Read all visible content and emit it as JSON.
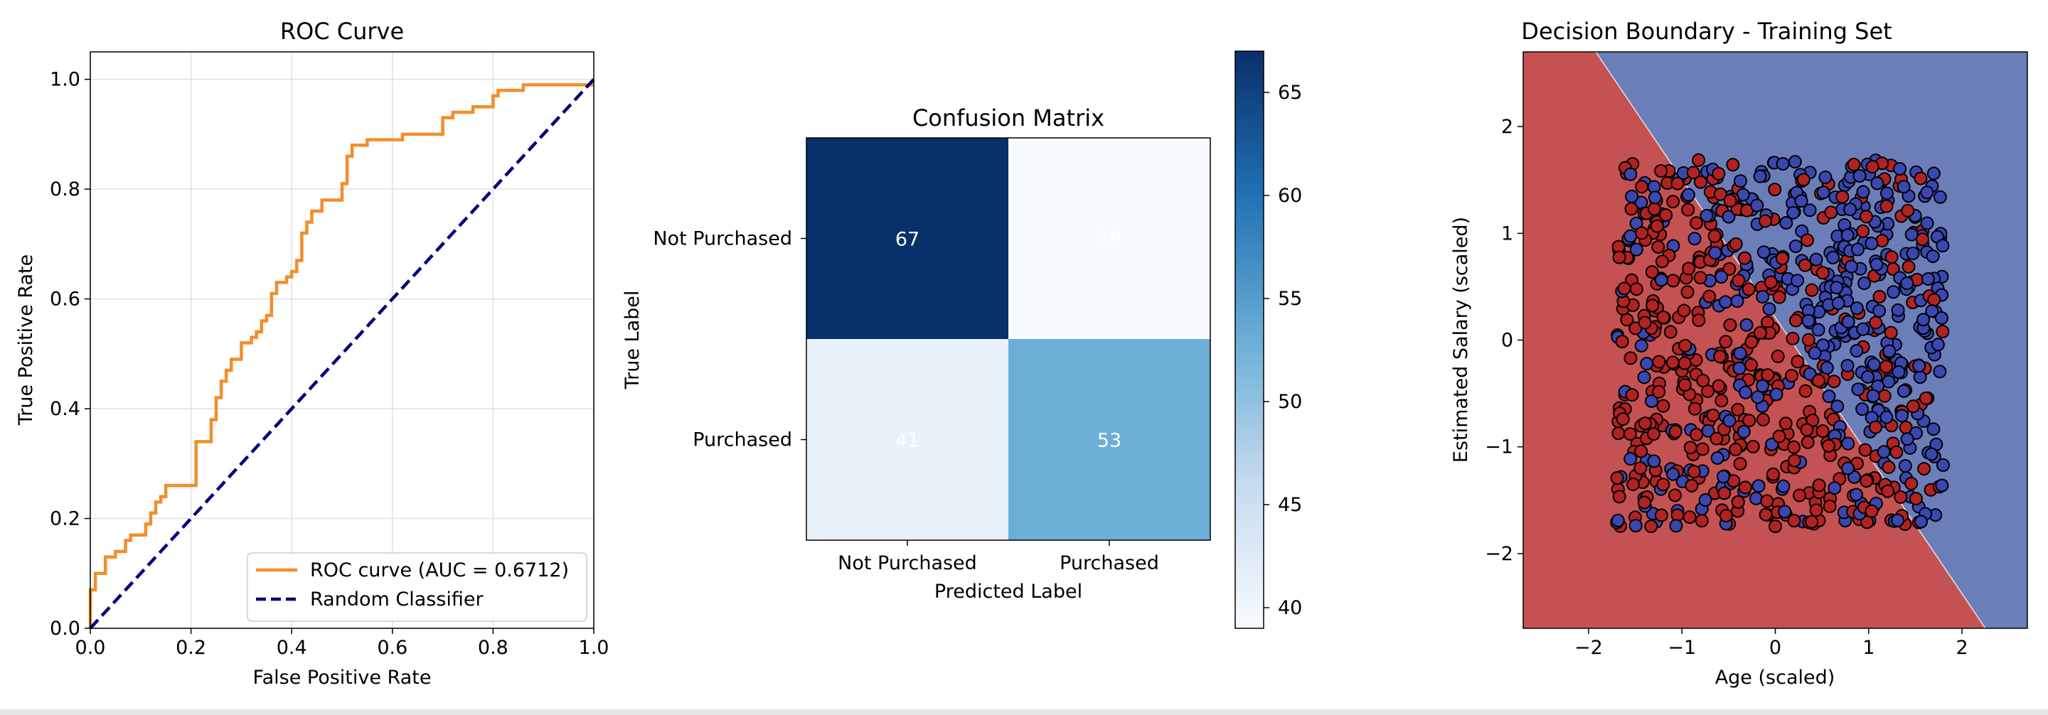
{
  "chart_data": [
    {
      "type": "line",
      "title": "ROC Curve",
      "xlabel": "False Positive Rate",
      "ylabel": "True Positive Rate",
      "xlim": [
        0,
        1
      ],
      "ylim": [
        0,
        1.05
      ],
      "xticks": [
        "0.0",
        "0.2",
        "0.4",
        "0.6",
        "0.8",
        "1.0"
      ],
      "yticks": [
        "0.0",
        "0.2",
        "0.4",
        "0.6",
        "0.8",
        "1.0"
      ],
      "grid": true,
      "legend_position": "lower-right",
      "series": [
        {
          "name": "ROC curve (AUC = 0.6712)",
          "color": "#f28e2b",
          "x": [
            0.0,
            0.0,
            0.01,
            0.01,
            0.03,
            0.03,
            0.05,
            0.05,
            0.07,
            0.07,
            0.08,
            0.08,
            0.11,
            0.11,
            0.12,
            0.12,
            0.13,
            0.13,
            0.14,
            0.14,
            0.15,
            0.15,
            0.16,
            0.16,
            0.17,
            0.17,
            0.21,
            0.21,
            0.24,
            0.24,
            0.25,
            0.25,
            0.26,
            0.26,
            0.27,
            0.27,
            0.28,
            0.28,
            0.3,
            0.3,
            0.32,
            0.32,
            0.33,
            0.33,
            0.34,
            0.34,
            0.35,
            0.35,
            0.36,
            0.36,
            0.37,
            0.37,
            0.39,
            0.39,
            0.4,
            0.4,
            0.41,
            0.41,
            0.42,
            0.42,
            0.43,
            0.43,
            0.44,
            0.44,
            0.46,
            0.46,
            0.47,
            0.47,
            0.5,
            0.5,
            0.51,
            0.51,
            0.52,
            0.52,
            0.55,
            0.55,
            0.57,
            0.57,
            0.62,
            0.62,
            0.7,
            0.7,
            0.72,
            0.72,
            0.76,
            0.76,
            0.8,
            0.8,
            0.81,
            0.81,
            0.84,
            0.84,
            0.86,
            0.86,
            1.0
          ],
          "y": [
            0.0,
            0.07,
            0.07,
            0.1,
            0.1,
            0.13,
            0.13,
            0.14,
            0.14,
            0.16,
            0.16,
            0.17,
            0.17,
            0.19,
            0.19,
            0.21,
            0.21,
            0.23,
            0.23,
            0.24,
            0.24,
            0.26,
            0.26,
            0.26,
            0.26,
            0.26,
            0.26,
            0.34,
            0.34,
            0.38,
            0.38,
            0.42,
            0.42,
            0.45,
            0.45,
            0.47,
            0.47,
            0.49,
            0.49,
            0.52,
            0.52,
            0.53,
            0.53,
            0.54,
            0.54,
            0.56,
            0.56,
            0.57,
            0.57,
            0.61,
            0.61,
            0.63,
            0.63,
            0.64,
            0.64,
            0.65,
            0.65,
            0.67,
            0.67,
            0.72,
            0.72,
            0.74,
            0.74,
            0.76,
            0.76,
            0.78,
            0.78,
            0.78,
            0.78,
            0.81,
            0.81,
            0.86,
            0.86,
            0.88,
            0.88,
            0.89,
            0.89,
            0.89,
            0.89,
            0.9,
            0.9,
            0.93,
            0.93,
            0.94,
            0.94,
            0.95,
            0.95,
            0.97,
            0.97,
            0.98,
            0.98,
            0.98,
            0.98,
            0.99,
            0.99
          ]
        },
        {
          "name": "Random Classifier",
          "color": "#000080",
          "x": [
            0,
            1
          ],
          "y": [
            0,
            1
          ]
        }
      ]
    },
    {
      "type": "heatmap",
      "title": "Confusion Matrix",
      "xlabel": "Predicted Label",
      "ylabel": "True Label",
      "x_categories": [
        "Not Purchased",
        "Purchased"
      ],
      "y_categories": [
        "Not Purchased",
        "Purchased"
      ],
      "values": [
        [
          67,
          39
        ],
        [
          41,
          53
        ]
      ],
      "colormap": "Blues",
      "colorbar": {
        "min": 39,
        "max": 67,
        "ticks": [
          "40",
          "45",
          "50",
          "55",
          "60",
          "65"
        ]
      }
    },
    {
      "type": "scatter",
      "title": "Decision Boundary - Training Set",
      "xlabel": "Age (scaled)",
      "ylabel": "Estimated Salary (scaled)",
      "xlim": [
        -2.7,
        2.7
      ],
      "ylim": [
        -2.7,
        2.7
      ],
      "xticks": [
        "−2",
        "−1",
        "0",
        "1",
        "2"
      ],
      "yticks": [
        "−2",
        "−1",
        "0",
        "1",
        "2"
      ],
      "regions": {
        "class_0_color": "#c45252",
        "class_1_color": "#6b7eb8"
      },
      "point_colors": {
        "class_0": "#b22222",
        "class_1": "#3a47b0"
      },
      "x_range": [
        -1.7,
        1.8
      ],
      "y_range": [
        -1.75,
        1.7
      ],
      "n_points": 800
    }
  ]
}
